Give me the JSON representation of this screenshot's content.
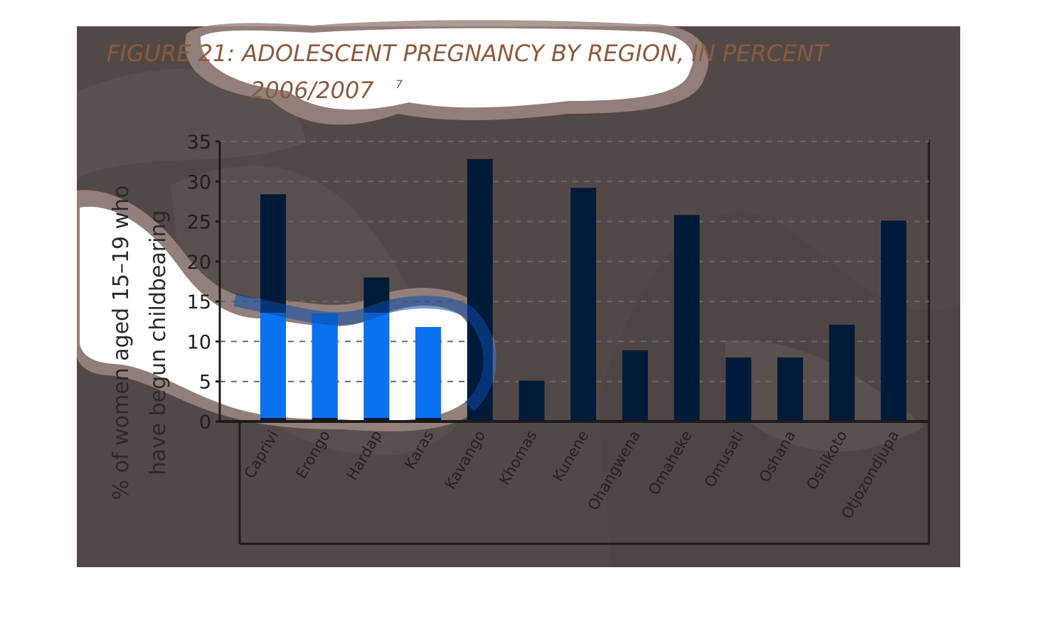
{
  "colors": {
    "background": "#ffffff",
    "panel": "#524947",
    "bar": "#001a3a",
    "bar_highlight": "#0a72ee",
    "title": "#8a5a3e"
  },
  "chart_data": {
    "type": "bar",
    "title": "FIGURE 21: ADOLESCENT PREGNANCY BY REGION, IN PERCENT",
    "subtitle": "2006/2007",
    "footnote_marker": "7",
    "ylabel_line1": "% of women aged 15–19 who",
    "ylabel_line2": "have begun childbearing",
    "xlabel": "",
    "ylim": [
      0,
      35
    ],
    "yticks": [
      "0",
      "5",
      "10",
      "15",
      "20",
      "25",
      "30",
      "35"
    ],
    "grid": true,
    "categories": [
      "Caprivi",
      "Erongo",
      "Hardap",
      "Karas",
      "Kavango",
      "Khomas",
      "Kunene",
      "Ohangwena",
      "Omaheke",
      "Omusati",
      "Oshana",
      "Oshikoto",
      "Otjozondjupa"
    ],
    "values": [
      28.4,
      13.5,
      18.0,
      11.8,
      32.8,
      5.1,
      29.2,
      8.9,
      25.8,
      8.0,
      8.0,
      12.1,
      25.1
    ]
  }
}
